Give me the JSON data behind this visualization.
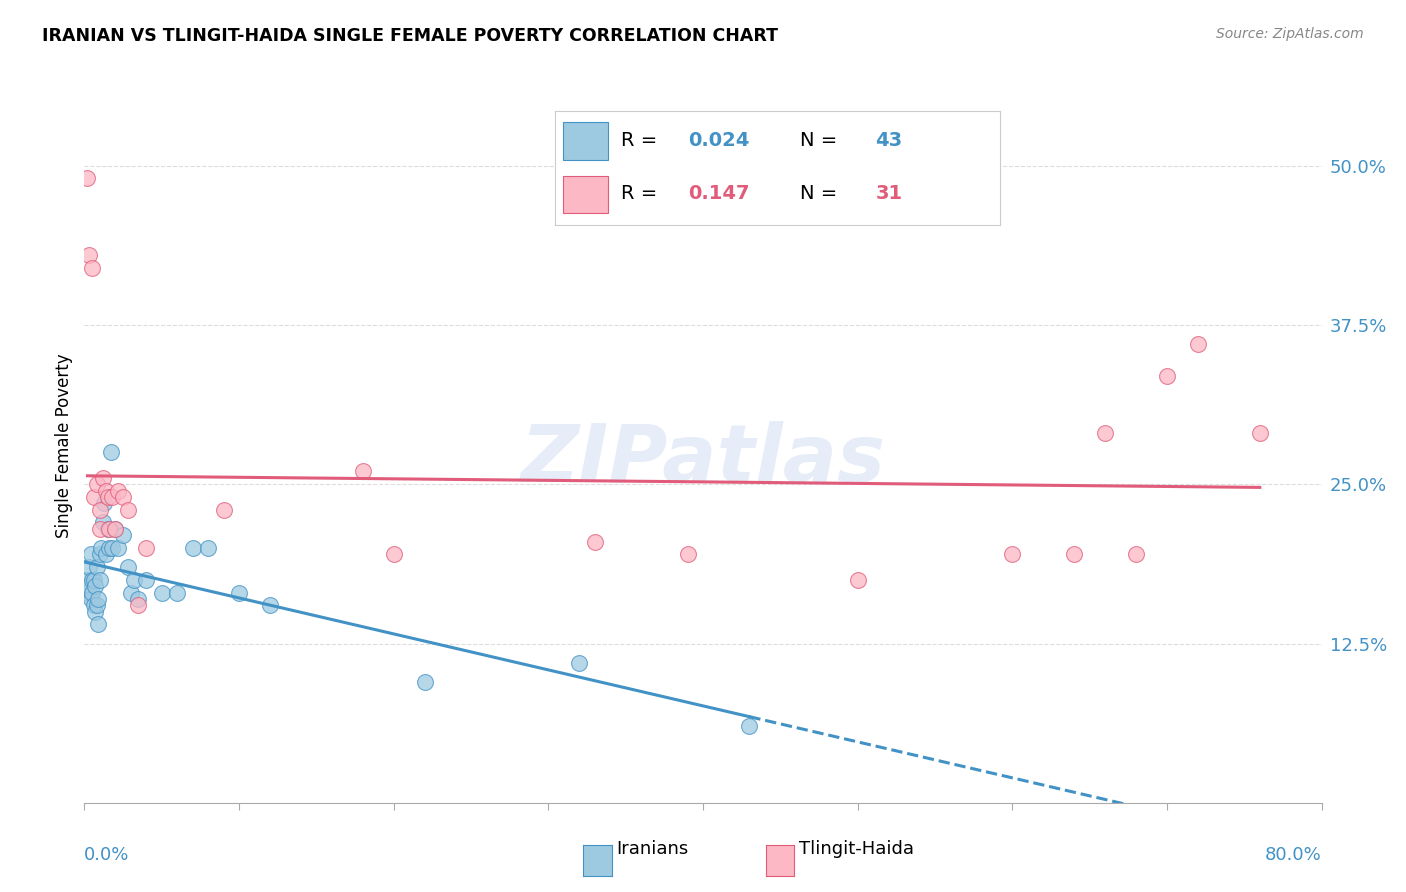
{
  "title": "IRANIAN VS TLINGIT-HAIDA SINGLE FEMALE POVERTY CORRELATION CHART",
  "source": "Source: ZipAtlas.com",
  "ylabel": "Single Female Poverty",
  "watermark": "ZIPatlas",
  "legend_R_blue": "0.024",
  "legend_N_blue": "43",
  "legend_R_pink": "0.147",
  "legend_N_pink": "31",
  "ytick_values": [
    0.125,
    0.25,
    0.375,
    0.5
  ],
  "xmin": 0.0,
  "xmax": 0.8,
  "ymin": 0.0,
  "ymax": 0.56,
  "iranians_x": [
    0.001,
    0.002,
    0.003,
    0.003,
    0.004,
    0.004,
    0.005,
    0.005,
    0.006,
    0.006,
    0.007,
    0.007,
    0.008,
    0.008,
    0.009,
    0.009,
    0.01,
    0.01,
    0.011,
    0.012,
    0.013,
    0.014,
    0.015,
    0.016,
    0.017,
    0.018,
    0.02,
    0.022,
    0.025,
    0.028,
    0.03,
    0.032,
    0.035,
    0.04,
    0.05,
    0.06,
    0.07,
    0.08,
    0.1,
    0.12,
    0.22,
    0.32,
    0.43
  ],
  "iranians_y": [
    0.175,
    0.165,
    0.185,
    0.17,
    0.195,
    0.16,
    0.175,
    0.165,
    0.175,
    0.155,
    0.15,
    0.17,
    0.155,
    0.185,
    0.16,
    0.14,
    0.195,
    0.175,
    0.2,
    0.22,
    0.235,
    0.195,
    0.215,
    0.2,
    0.275,
    0.2,
    0.215,
    0.2,
    0.21,
    0.185,
    0.165,
    0.175,
    0.16,
    0.175,
    0.165,
    0.165,
    0.2,
    0.2,
    0.165,
    0.155,
    0.095,
    0.11,
    0.06
  ],
  "tlingit_x": [
    0.002,
    0.003,
    0.005,
    0.006,
    0.008,
    0.01,
    0.01,
    0.012,
    0.014,
    0.015,
    0.016,
    0.018,
    0.02,
    0.022,
    0.025,
    0.028,
    0.035,
    0.04,
    0.09,
    0.18,
    0.2,
    0.33,
    0.39,
    0.5,
    0.6,
    0.64,
    0.66,
    0.68,
    0.7,
    0.72,
    0.76
  ],
  "tlingit_y": [
    0.49,
    0.43,
    0.42,
    0.24,
    0.25,
    0.23,
    0.215,
    0.255,
    0.245,
    0.24,
    0.215,
    0.24,
    0.215,
    0.245,
    0.24,
    0.23,
    0.155,
    0.2,
    0.23,
    0.26,
    0.195,
    0.205,
    0.195,
    0.175,
    0.195,
    0.195,
    0.29,
    0.195,
    0.335,
    0.36,
    0.29
  ],
  "background_color": "#ffffff",
  "grid_color": "#dddddd",
  "blue_color": "#4292c6",
  "blue_fill": "#9ecae1",
  "pink_color": "#e05c7a",
  "pink_fill": "#fcb8c5"
}
